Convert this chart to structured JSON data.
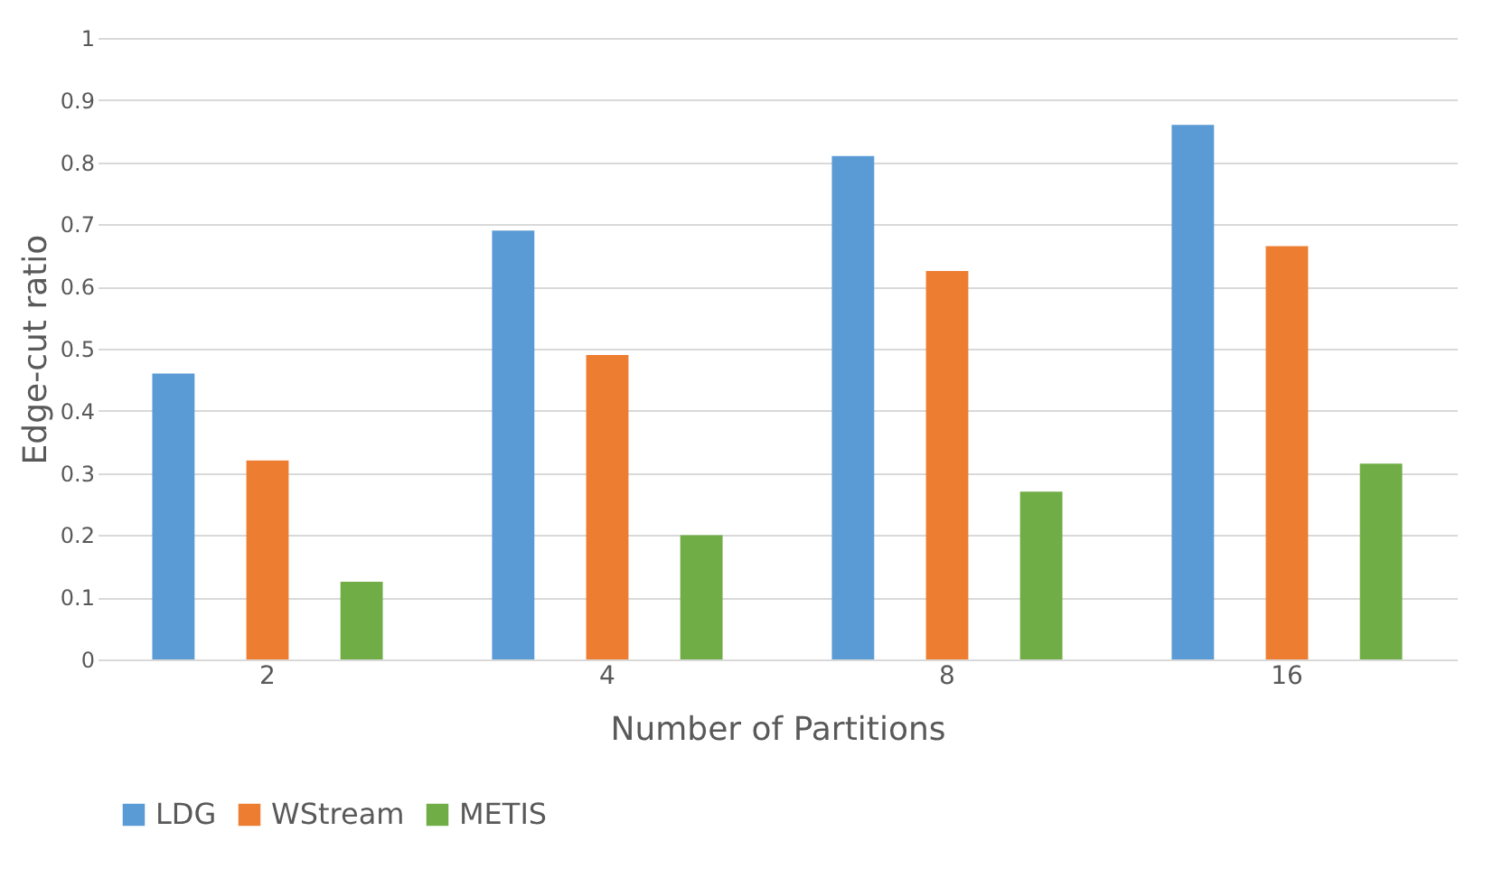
{
  "chart_data": {
    "type": "bar",
    "xlabel": "Number of Partitions",
    "ylabel": "Edge-cut ratio",
    "categories": [
      "2",
      "4",
      "8",
      "16"
    ],
    "series": [
      {
        "name": "LDG",
        "color": "#5b9bd5",
        "values": [
          0.46,
          0.69,
          0.81,
          0.86
        ]
      },
      {
        "name": "WStream",
        "color": "#ed7d31",
        "values": [
          0.32,
          0.49,
          0.625,
          0.665
        ]
      },
      {
        "name": "METIS",
        "color": "#70ad47",
        "values": [
          0.125,
          0.2,
          0.27,
          0.315
        ]
      }
    ],
    "ylim": [
      0,
      1
    ],
    "yticks": [
      0,
      0.1,
      0.2,
      0.3,
      0.4,
      0.5,
      0.6,
      0.7,
      0.8,
      0.9,
      1
    ],
    "grid": "y",
    "legend": "bottom"
  }
}
